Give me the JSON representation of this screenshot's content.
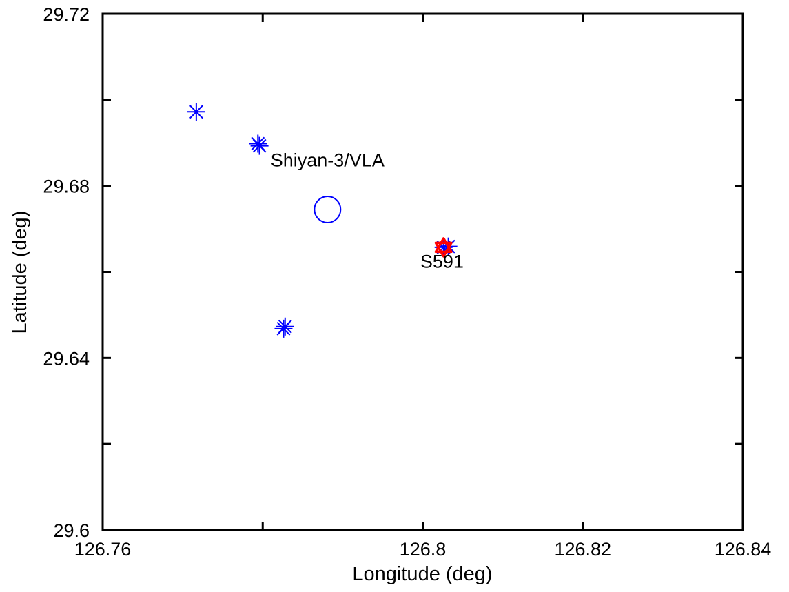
{
  "chart_data": {
    "type": "scatter",
    "title": "",
    "xlabel": "Longitude (deg)",
    "ylabel": "Latitude (deg)",
    "xlim": [
      126.76,
      126.84
    ],
    "ylim": [
      29.6,
      29.72
    ],
    "xticks": [
      126.76,
      126.8,
      126.82,
      126.84
    ],
    "xtick_labels": [
      "126.76",
      "126.8",
      "126.82",
      "126.84"
    ],
    "xtick_marks": [
      126.76,
      126.78,
      126.8,
      126.82,
      126.84
    ],
    "yticks": [
      29.6,
      29.64,
      29.68,
      29.72
    ],
    "ytick_labels": [
      "29.6",
      "29.64",
      "29.68",
      "29.72"
    ],
    "ytick_marks": [
      29.6,
      29.62,
      29.64,
      29.66,
      29.68,
      29.7,
      29.72
    ],
    "grid": false,
    "series": [
      {
        "marker": "asterisk",
        "color": "#0000ff",
        "points": [
          {
            "x": 126.7717,
            "y": 29.6972
          },
          {
            "x": 126.7794,
            "y": 29.6898
          },
          {
            "x": 126.7796,
            "y": 29.6893
          },
          {
            "x": 126.7828,
            "y": 29.6473
          },
          {
            "x": 126.7826,
            "y": 29.6468
          },
          {
            "x": 126.8026,
            "y": 29.6657
          },
          {
            "x": 126.8032,
            "y": 29.6659
          }
        ]
      },
      {
        "marker": "circle",
        "color": "#0000ff",
        "points": [
          {
            "x": 126.7881,
            "y": 29.6745
          }
        ]
      },
      {
        "marker": "hexagram",
        "color": "#ff0000",
        "points": [
          {
            "x": 126.8026,
            "y": 29.6657
          }
        ]
      }
    ],
    "annotations": [
      {
        "text": "Shiyan-3/VLA",
        "x": 126.7881,
        "y": 29.6845
      },
      {
        "text": "S591",
        "x": 126.8024,
        "y": 29.661
      }
    ]
  }
}
